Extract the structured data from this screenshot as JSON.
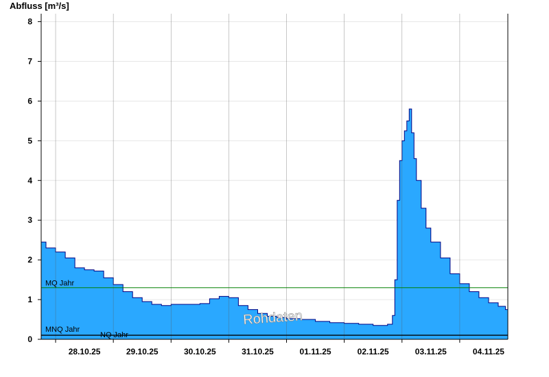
{
  "chart_data": {
    "type": "area",
    "ylabel": "Abfluss [m³/s]",
    "xlabel": "",
    "ylim": [
      0,
      8.2
    ],
    "yticks": [
      0,
      1,
      2,
      3,
      4,
      5,
      6,
      7,
      8
    ],
    "xlim": [
      "2025-10-27T18:00",
      "2025-11-04T20:00"
    ],
    "xtick_labels": [
      "28.10.25",
      "29.10.25",
      "30.10.25",
      "31.10.25",
      "01.11.25",
      "02.11.25",
      "03.11.25",
      "04.11.25"
    ],
    "xtick_dates": [
      "2025-10-28T12:00",
      "2025-10-29T12:00",
      "2025-10-30T12:00",
      "2025-10-31T12:00",
      "2025-11-01T12:00",
      "2025-11-02T12:00",
      "2025-11-03T12:00",
      "2025-11-04T12:00"
    ],
    "day_boundaries": [
      "2025-10-28",
      "2025-10-29",
      "2025-10-30",
      "2025-10-31",
      "2025-11-01",
      "2025-11-02",
      "2025-11-03",
      "2025-11-04",
      "2025-11-05"
    ],
    "grid": true,
    "fill_color": "#2aa8ff",
    "line_color": "#000080",
    "series": [
      {
        "x": [
          "2025-10-27T18:00",
          "2025-10-27T20:00",
          "2025-10-28T00:00",
          "2025-10-28T04:00",
          "2025-10-28T08:00",
          "2025-10-28T12:00",
          "2025-10-28T16:00",
          "2025-10-28T20:00",
          "2025-10-29T00:00",
          "2025-10-29T04:00",
          "2025-10-29T08:00",
          "2025-10-29T12:00",
          "2025-10-29T16:00",
          "2025-10-29T20:00",
          "2025-10-30T00:00",
          "2025-10-30T08:00",
          "2025-10-30T12:00",
          "2025-10-30T16:00",
          "2025-10-30T20:00",
          "2025-10-31T00:00",
          "2025-10-31T04:00",
          "2025-10-31T08:00",
          "2025-10-31T12:00",
          "2025-10-31T16:00",
          "2025-10-31T20:00",
          "2025-11-01T00:00",
          "2025-11-01T06:00",
          "2025-11-01T12:00",
          "2025-11-01T18:00",
          "2025-11-02T00:00",
          "2025-11-02T06:00",
          "2025-11-02T12:00",
          "2025-11-02T15:00",
          "2025-11-02T18:00",
          "2025-11-02T20:00",
          "2025-11-02T21:00",
          "2025-11-02T22:00",
          "2025-11-02T23:00",
          "2025-11-03T00:00",
          "2025-11-03T01:00",
          "2025-11-03T02:00",
          "2025-11-03T03:00",
          "2025-11-03T04:00",
          "2025-11-03T05:00",
          "2025-11-03T06:00",
          "2025-11-03T08:00",
          "2025-11-03T10:00",
          "2025-11-03T12:00",
          "2025-11-03T16:00",
          "2025-11-03T20:00",
          "2025-11-04T00:00",
          "2025-11-04T04:00",
          "2025-11-04T08:00",
          "2025-11-04T12:00",
          "2025-11-04T16:00",
          "2025-11-04T19:00",
          "2025-11-04T20:00"
        ],
        "y": [
          2.45,
          2.3,
          2.2,
          2.05,
          1.8,
          1.75,
          1.72,
          1.55,
          1.38,
          1.2,
          1.05,
          0.95,
          0.88,
          0.85,
          0.88,
          0.88,
          0.9,
          1.02,
          1.08,
          1.05,
          0.85,
          0.75,
          0.65,
          0.58,
          0.55,
          0.52,
          0.5,
          0.45,
          0.42,
          0.4,
          0.38,
          0.35,
          0.35,
          0.38,
          0.6,
          1.5,
          3.5,
          4.5,
          5.0,
          5.25,
          5.5,
          5.8,
          5.2,
          4.55,
          4.0,
          3.3,
          2.8,
          2.45,
          2.05,
          1.65,
          1.4,
          1.2,
          1.05,
          0.92,
          0.83,
          0.75,
          0.68
        ]
      }
    ],
    "reference_lines": [
      {
        "label": "MQ Jahr",
        "value": 1.3,
        "color": "#008000"
      },
      {
        "label": "MNQ Jahr",
        "value": 0.14,
        "color": "#000000"
      },
      {
        "label": "NQ Jahr",
        "value": 0.12,
        "color": "#000000"
      }
    ],
    "watermark": "Rohdaten"
  }
}
